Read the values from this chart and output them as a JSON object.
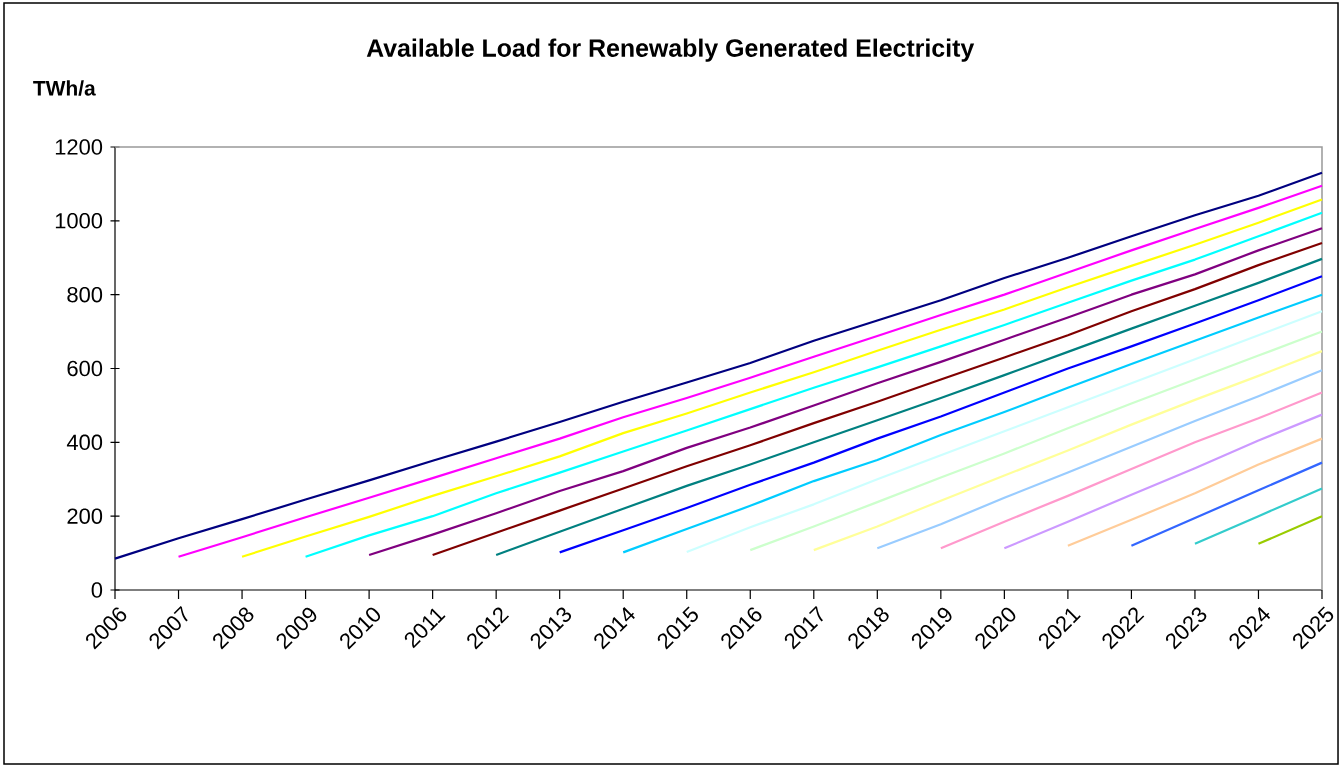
{
  "chart_data": {
    "type": "line",
    "title": "Available Load for Renewably Generated Electricity",
    "ylabel": "TWh/a",
    "categories": [
      "2006",
      "2007",
      "2008",
      "2009",
      "2010",
      "2011",
      "2012",
      "2013",
      "2014",
      "2015",
      "2016",
      "2017",
      "2018",
      "2019",
      "2020",
      "2021",
      "2022",
      "2023",
      "2024",
      "2025"
    ],
    "ylim": [
      0,
      1200
    ],
    "yticks": [
      0,
      200,
      400,
      600,
      800,
      1000,
      1200
    ],
    "series": [
      {
        "color": "#000080",
        "values": [
          85,
          140,
          192,
          245,
          297,
          350,
          402,
          455,
          510,
          562,
          615,
          675,
          730,
          785,
          845,
          900,
          958,
          1015,
          1068,
          1130
        ]
      },
      {
        "color": "#ff00ff",
        "values": [
          null,
          90,
          143,
          197,
          250,
          303,
          357,
          410,
          468,
          520,
          575,
          632,
          688,
          745,
          800,
          860,
          920,
          978,
          1035,
          1095
        ]
      },
      {
        "color": "#ffff00",
        "values": [
          null,
          null,
          90,
          145,
          198,
          255,
          308,
          362,
          425,
          478,
          535,
          590,
          648,
          705,
          760,
          820,
          878,
          935,
          995,
          1058
        ]
      },
      {
        "color": "#00ffff",
        "values": [
          null,
          null,
          null,
          90,
          148,
          200,
          262,
          318,
          375,
          432,
          490,
          548,
          603,
          660,
          718,
          778,
          838,
          895,
          958,
          1022
        ]
      },
      {
        "color": "#800080",
        "values": [
          null,
          null,
          null,
          null,
          95,
          150,
          208,
          268,
          322,
          385,
          440,
          500,
          560,
          618,
          678,
          738,
          800,
          855,
          920,
          980
        ]
      },
      {
        "color": "#800000",
        "values": [
          null,
          null,
          null,
          null,
          null,
          95,
          155,
          215,
          275,
          335,
          392,
          452,
          510,
          570,
          630,
          690,
          755,
          815,
          880,
          940
        ]
      },
      {
        "color": "#008080",
        "values": [
          null,
          null,
          null,
          null,
          null,
          null,
          95,
          158,
          220,
          282,
          340,
          400,
          460,
          520,
          582,
          645,
          708,
          770,
          832,
          897
        ]
      },
      {
        "color": "#0000ff",
        "values": [
          null,
          null,
          null,
          null,
          null,
          null,
          null,
          102,
          162,
          222,
          285,
          345,
          410,
          470,
          535,
          600,
          660,
          722,
          785,
          850
        ]
      },
      {
        "color": "#00ccff",
        "values": [
          null,
          null,
          null,
          null,
          null,
          null,
          null,
          null,
          102,
          165,
          228,
          295,
          352,
          420,
          482,
          548,
          612,
          675,
          738,
          800
        ]
      },
      {
        "color": "#ccffff",
        "values": [
          null,
          null,
          null,
          null,
          null,
          null,
          null,
          null,
          null,
          103,
          170,
          232,
          300,
          365,
          430,
          495,
          560,
          625,
          690,
          755
        ]
      },
      {
        "color": "#ccffcc",
        "values": [
          null,
          null,
          null,
          null,
          null,
          null,
          null,
          null,
          null,
          null,
          108,
          172,
          238,
          305,
          370,
          438,
          505,
          570,
          635,
          700
        ]
      },
      {
        "color": "#ffff99",
        "values": [
          null,
          null,
          null,
          null,
          null,
          null,
          null,
          null,
          null,
          null,
          null,
          108,
          172,
          242,
          310,
          378,
          448,
          515,
          580,
          647
        ]
      },
      {
        "color": "#99ccff",
        "values": [
          null,
          null,
          null,
          null,
          null,
          null,
          null,
          null,
          null,
          null,
          null,
          null,
          113,
          178,
          250,
          318,
          388,
          458,
          525,
          595
        ]
      },
      {
        "color": "#ff99cc",
        "values": [
          null,
          null,
          null,
          null,
          null,
          null,
          null,
          null,
          null,
          null,
          null,
          null,
          null,
          113,
          185,
          255,
          328,
          400,
          465,
          535
        ]
      },
      {
        "color": "#cc99ff",
        "values": [
          null,
          null,
          null,
          null,
          null,
          null,
          null,
          null,
          null,
          null,
          null,
          null,
          null,
          null,
          113,
          185,
          258,
          330,
          405,
          475
        ]
      },
      {
        "color": "#ffcc99",
        "values": [
          null,
          null,
          null,
          null,
          null,
          null,
          null,
          null,
          null,
          null,
          null,
          null,
          null,
          null,
          null,
          120,
          190,
          262,
          340,
          410
        ]
      },
      {
        "color": "#3366ff",
        "values": [
          null,
          null,
          null,
          null,
          null,
          null,
          null,
          null,
          null,
          null,
          null,
          null,
          null,
          null,
          null,
          null,
          120,
          195,
          270,
          345
        ]
      },
      {
        "color": "#33cccc",
        "values": [
          null,
          null,
          null,
          null,
          null,
          null,
          null,
          null,
          null,
          null,
          null,
          null,
          null,
          null,
          null,
          null,
          null,
          125,
          200,
          275
        ]
      },
      {
        "color": "#99cc00",
        "values": [
          null,
          null,
          null,
          null,
          null,
          null,
          null,
          null,
          null,
          null,
          null,
          null,
          null,
          null,
          null,
          null,
          null,
          null,
          125,
          200
        ]
      }
    ]
  }
}
